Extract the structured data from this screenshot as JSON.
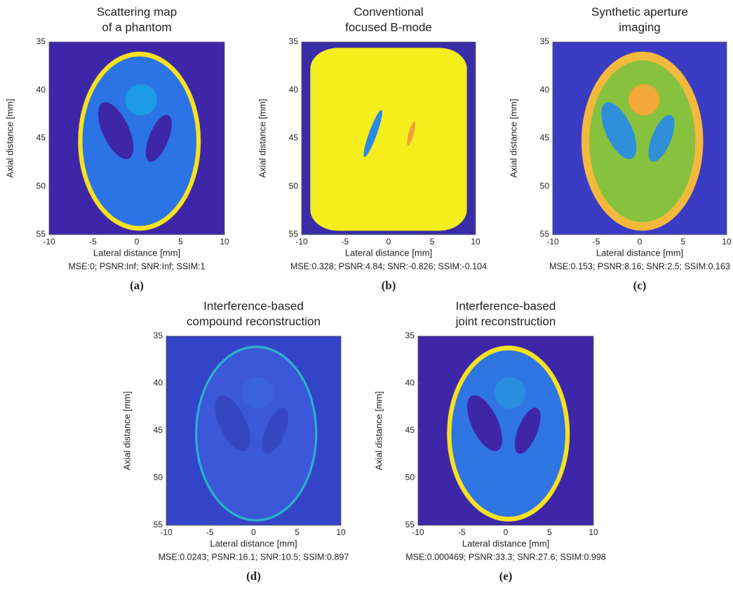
{
  "panels": [
    {
      "title": [
        "Scattering map",
        "of a phantom"
      ],
      "xlabel": "Lateral distance [mm]",
      "ylabel": "Axial distance [mm]",
      "xlim": [
        -10,
        10
      ],
      "ylim": [
        35,
        55
      ],
      "xticks": [
        -10,
        -5,
        0,
        5,
        10
      ],
      "yticks": [
        35,
        40,
        45,
        50,
        55
      ],
      "metrics": "MSE:0; PSNR:Inf; SNR:Inf; SSIM:1",
      "caption": "(a)"
    },
    {
      "title": [
        "Conventional",
        "focused B-mode"
      ],
      "xlabel": "Lateral distance [mm]",
      "ylabel": "Axial distance [mm]",
      "xlim": [
        -10,
        10
      ],
      "ylim": [
        35,
        55
      ],
      "xticks": [
        -10,
        -5,
        0,
        5,
        10
      ],
      "yticks": [
        35,
        40,
        45,
        50,
        55
      ],
      "metrics": "MSE:0.328; PSNR:4.84; SNR:-0.826; SSIM:-0.104",
      "caption": "(b)"
    },
    {
      "title": [
        "Synthetic aperture",
        "imaging"
      ],
      "xlabel": "Lateral distance [mm]",
      "ylabel": "Axial distance [mm]",
      "xlim": [
        -10,
        10
      ],
      "ylim": [
        35,
        55
      ],
      "xticks": [
        -10,
        -5,
        0,
        5,
        10
      ],
      "yticks": [
        35,
        40,
        45,
        50,
        55
      ],
      "metrics": "MSE:0.153; PSNR:8.16; SNR:2.5; SSIM:0.163",
      "caption": "(c)"
    },
    {
      "title": [
        "Interference-based",
        "compound reconstruction"
      ],
      "xlabel": "Lateral distance [mm]",
      "ylabel": "Axial distance [mm]",
      "xlim": [
        -10,
        10
      ],
      "ylim": [
        35,
        55
      ],
      "xticks": [
        -10,
        -5,
        0,
        5,
        10
      ],
      "yticks": [
        35,
        40,
        45,
        50,
        55
      ],
      "metrics": "MSE:0.0243; PSNR:16.1; SNR:10.5; SSIM:0.897",
      "caption": "(d)"
    },
    {
      "title": [
        "Interference-based",
        "joint reconstruction"
      ],
      "xlabel": "Lateral distance [mm]",
      "ylabel": "Axial distance [mm]",
      "xlim": [
        -10,
        10
      ],
      "ylim": [
        35,
        55
      ],
      "xticks": [
        -10,
        -5,
        0,
        5,
        10
      ],
      "yticks": [
        35,
        40,
        45,
        50,
        55
      ],
      "metrics": "MSE:0.000469; PSNR:33.3; SNR:27.6; SSIM:0.998",
      "caption": "(e)"
    }
  ]
}
